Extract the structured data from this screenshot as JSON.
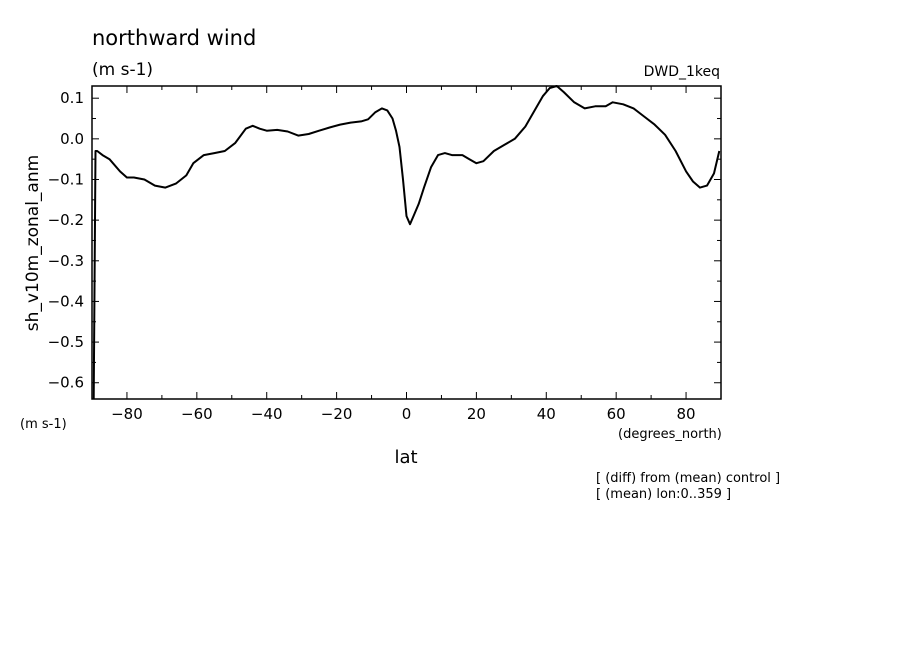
{
  "chart_data": {
    "type": "line",
    "title": "northward wind",
    "units_label": "(m s-1)",
    "dataset_label": "DWD_1keq",
    "ylabel": "sh_v10m_zonal_anm",
    "y_units_label": "(m s-1)",
    "xlabel": "lat",
    "x_units_label": "(degrees_north)",
    "annotations": [
      "[ (diff) from (mean) control ]",
      "[ (mean) lon:0..359 ]"
    ],
    "xlim": [
      -90,
      90
    ],
    "ylim": [
      -0.64,
      0.13
    ],
    "x_ticks": [
      -80,
      -60,
      -40,
      -20,
      0,
      20,
      40,
      60,
      80
    ],
    "y_ticks": [
      0.1,
      0.0,
      -0.1,
      -0.2,
      -0.3,
      -0.4,
      -0.5,
      -0.6
    ],
    "x_tick_labels": [
      "−80",
      "−60",
      "−40",
      "−20",
      "0",
      "20",
      "40",
      "60",
      "80"
    ],
    "y_tick_labels": [
      "0.1",
      "0.0",
      "−0.1",
      "−0.2",
      "−0.3",
      "−0.4",
      "−0.5",
      "−0.6"
    ],
    "grid": false,
    "series": [
      {
        "color": "#000000",
        "x": [
          -89.5,
          -89.0,
          -88.5,
          -87.0,
          -85.0,
          -82.0,
          -80.0,
          -78.0,
          -75.0,
          -72.0,
          -69.0,
          -66.0,
          -63.0,
          -61.0,
          -58.0,
          -55.0,
          -52.0,
          -49.0,
          -46.0,
          -44.0,
          -42.0,
          -40.0,
          -37.0,
          -34.0,
          -31.0,
          -28.0,
          -25.0,
          -22.0,
          -19.0,
          -16.0,
          -13.0,
          -11.0,
          -9.0,
          -7.0,
          -5.5,
          -4.0,
          -3.0,
          -2.0,
          -1.0,
          0.0,
          1.0,
          2.0,
          3.5,
          5.0,
          7.0,
          9.0,
          11.0,
          13.0,
          16.0,
          18.0,
          20.0,
          22.0,
          25.0,
          28.0,
          31.0,
          34.0,
          37.0,
          39.0,
          41.0,
          43.0,
          45.0,
          48.0,
          51.0,
          54.0,
          57.0,
          59.0,
          62.0,
          65.0,
          68.0,
          71.0,
          74.0,
          77.0,
          80.0,
          82.0,
          84.0,
          86.0,
          88.0,
          89.5
        ],
        "y": [
          -0.64,
          -0.03,
          -0.03,
          -0.04,
          -0.05,
          -0.08,
          -0.095,
          -0.095,
          -0.1,
          -0.115,
          -0.12,
          -0.11,
          -0.09,
          -0.06,
          -0.04,
          -0.035,
          -0.03,
          -0.01,
          0.025,
          0.032,
          0.025,
          0.02,
          0.022,
          0.018,
          0.008,
          0.012,
          0.02,
          0.028,
          0.035,
          0.04,
          0.043,
          0.048,
          0.065,
          0.075,
          0.07,
          0.05,
          0.02,
          -0.02,
          -0.1,
          -0.19,
          -0.21,
          -0.19,
          -0.16,
          -0.12,
          -0.07,
          -0.04,
          -0.035,
          -0.04,
          -0.04,
          -0.05,
          -0.06,
          -0.055,
          -0.03,
          -0.015,
          0.0,
          0.03,
          0.075,
          0.105,
          0.125,
          0.13,
          0.115,
          0.09,
          0.075,
          0.08,
          0.08,
          0.09,
          0.085,
          0.075,
          0.055,
          0.035,
          0.01,
          -0.03,
          -0.08,
          -0.105,
          -0.12,
          -0.115,
          -0.085,
          -0.03
        ]
      }
    ]
  }
}
